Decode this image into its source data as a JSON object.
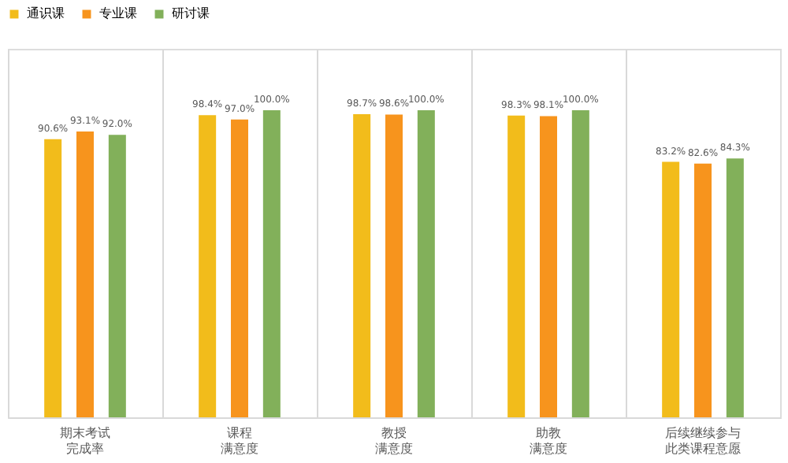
{
  "chart_data": {
    "type": "bar",
    "categories": [
      "期末考试完成率",
      "课程满意度",
      "教授满意度",
      "助教满意度",
      "后续继续参与此类课程意愿"
    ],
    "series": [
      {
        "name": "通识课",
        "color": "#f2bc1b",
        "values": [
          90.6,
          98.4,
          98.7,
          98.3,
          83.2
        ],
        "value_labels": [
          "90.6%",
          "98.4%",
          "98.7%",
          "98.3%",
          "83.2%"
        ]
      },
      {
        "name": "专业课",
        "color": "#f7941d",
        "values": [
          93.1,
          97.0,
          98.6,
          98.1,
          82.6
        ],
        "value_labels": [
          "93.1%",
          "97.0%",
          "98.6%",
          "98.1%",
          "82.6%"
        ]
      },
      {
        "name": "研讨课",
        "color": "#82b05a",
        "values": [
          92.0,
          100.0,
          100.0,
          100.0,
          84.3
        ],
        "value_labels": [
          "92.0%",
          "100.0%",
          "100.0%",
          "100.0%",
          "84.3%"
        ]
      }
    ],
    "ylim": [
      0,
      120
    ],
    "tick_labels": "x",
    "grid": "x",
    "legend": "top"
  }
}
